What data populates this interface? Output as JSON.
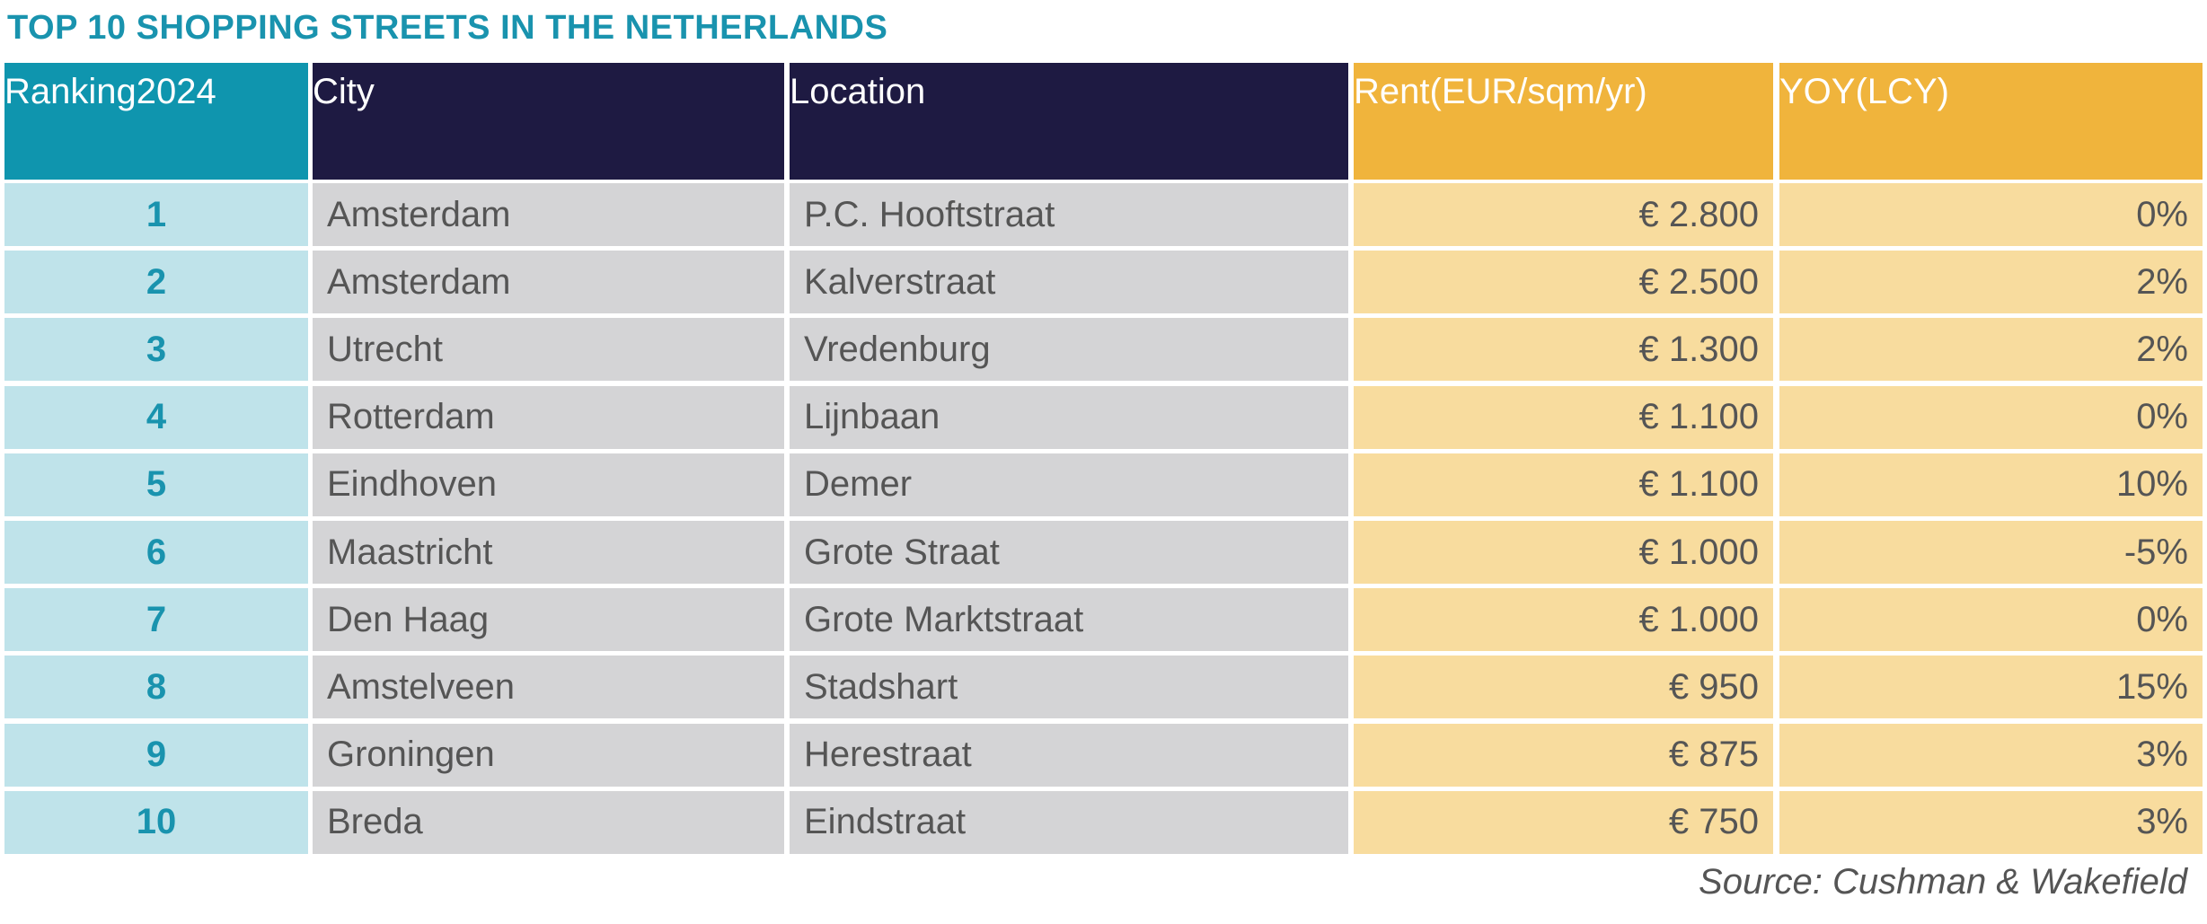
{
  "title": "TOP 10 SHOPPING STREETS IN THE NETHERLANDS",
  "table": {
    "headers": [
      [
        "Ranking",
        "2024"
      ],
      [
        "City"
      ],
      [
        "Location"
      ],
      [
        "Rent",
        "(EUR/sqm/yr)"
      ],
      [
        "YOY",
        "(LCY)"
      ]
    ],
    "rows": [
      [
        "1",
        "Amsterdam",
        "P.C. Hooftstraat",
        "€ 2.800",
        "0%"
      ],
      [
        "2",
        "Amsterdam",
        "Kalverstraat",
        "€ 2.500",
        "2%"
      ],
      [
        "3",
        "Utrecht",
        "Vredenburg",
        "€ 1.300",
        "2%"
      ],
      [
        "4",
        "Rotterdam",
        "Lijnbaan",
        "€ 1.100",
        "0%"
      ],
      [
        "5",
        "Eindhoven",
        "Demer",
        "€ 1.100",
        "10%"
      ],
      [
        "6",
        "Maastricht",
        "Grote Straat",
        "€ 1.000",
        "-5%"
      ],
      [
        "7",
        "Den Haag",
        "Grote Marktstraat",
        "€ 1.000",
        "0%"
      ],
      [
        "8",
        "Amstelveen",
        "Stadshart",
        "€ 950",
        "15%"
      ],
      [
        "9",
        "Groningen",
        "Herestraat",
        "€ 875",
        "3%"
      ],
      [
        "10",
        "Breda",
        "Eindstraat",
        "€ 750",
        "3%"
      ]
    ]
  },
  "source": "Source: Cushman & Wakefield"
}
